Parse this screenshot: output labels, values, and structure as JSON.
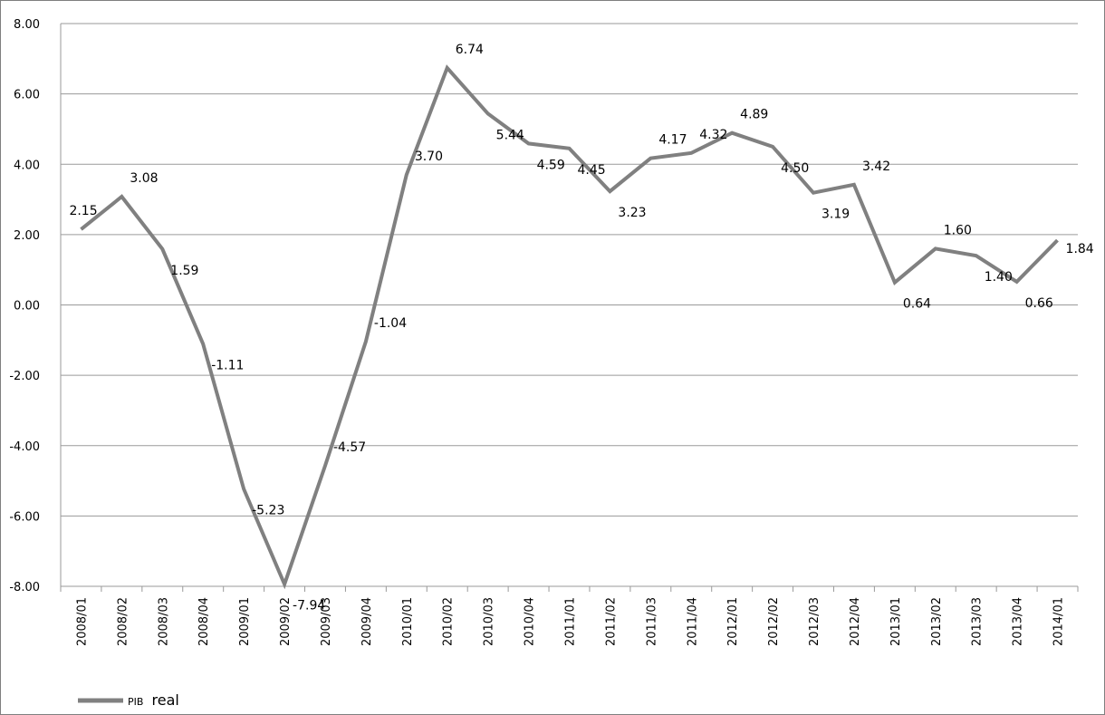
{
  "chart_data": {
    "type": "line",
    "categories": [
      "2008/01",
      "2008/02",
      "2008/03",
      "2008/04",
      "2009/01",
      "2009/02",
      "2009/03",
      "2009/04",
      "2010/01",
      "2010/02",
      "2010/03",
      "2010/04",
      "2011/01",
      "2011/02",
      "2011/03",
      "2011/04",
      "2012/01",
      "2012/02",
      "2012/03",
      "2012/04",
      "2013/01",
      "2013/02",
      "2013/03",
      "2013/04",
      "2014/01"
    ],
    "series": [
      {
        "name": "PIB real",
        "color": "#808080",
        "values": [
          2.15,
          3.08,
          1.59,
          -1.11,
          -5.23,
          -7.94,
          -4.57,
          -1.04,
          3.7,
          6.74,
          5.44,
          4.59,
          4.45,
          3.23,
          4.17,
          4.32,
          4.89,
          4.5,
          3.19,
          3.42,
          0.64,
          1.6,
          1.4,
          0.66,
          1.84
        ],
        "data_labels": [
          "2.15",
          "3.08",
          "1.59",
          "-1.11",
          "-5.23",
          "-7.94",
          "-4.57",
          "-1.04",
          "3.70",
          "6.74",
          "5.44",
          "4.59",
          "4.45",
          "3.23",
          "4.17",
          "4.32",
          "4.89",
          "4.50",
          "3.19",
          "3.42",
          "0.64",
          "1.60",
          "1.40",
          "0.66",
          "1.84"
        ]
      }
    ],
    "y_ticks": [
      "8.00",
      "6.00",
      "4.00",
      "2.00",
      "0.00",
      "-2.00",
      "-4.00",
      "-6.00",
      "-8.00"
    ],
    "ylim": [
      -8,
      8
    ],
    "grid": true,
    "legend": {
      "position": "bottom-left",
      "label_prefix": "PIB",
      "label_suffix": "real"
    },
    "title": "",
    "xlabel": "",
    "ylabel": ""
  }
}
